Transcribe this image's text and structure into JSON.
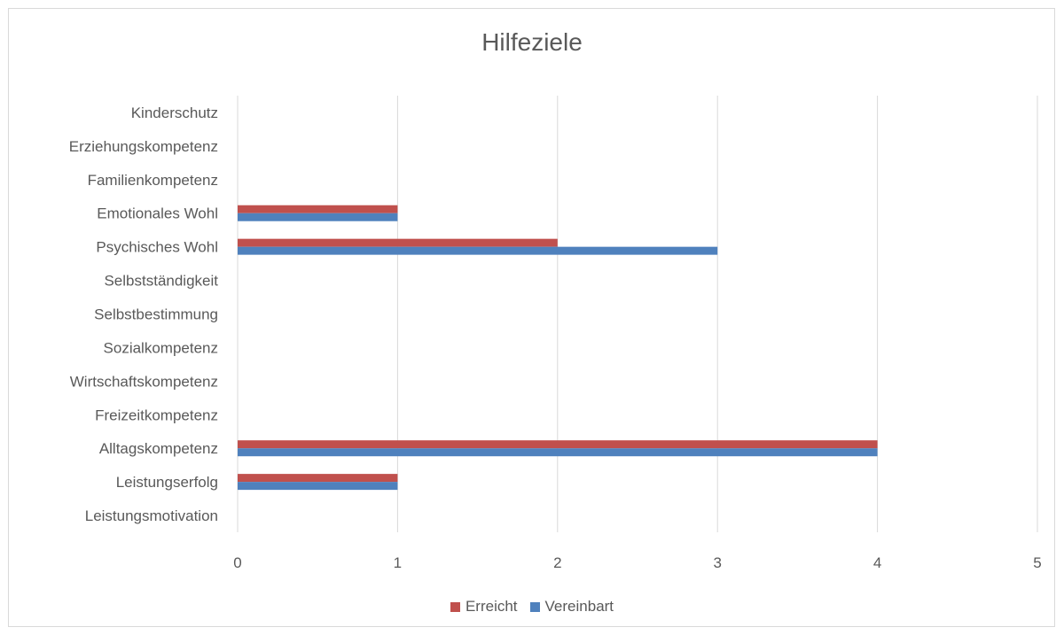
{
  "chart_data": {
    "type": "bar",
    "orientation": "horizontal",
    "title": "Hilfeziele",
    "categories": [
      "Kinderschutz",
      "Erziehungskompetenz",
      "Familienkompetenz",
      "Emotionales Wohl",
      "Psychisches Wohl",
      "Selbstständigkeit",
      "Selbstbestimmung",
      "Sozialkompetenz",
      "Wirtschaftskompetenz",
      "Freizeitkompetenz",
      "Alltagskompetenz",
      "Leistungserfolg",
      "Leistungsmotivation"
    ],
    "series": [
      {
        "name": "Erreicht",
        "color": "#c0504d",
        "values": [
          0,
          0,
          0,
          1,
          2,
          0,
          0,
          0,
          0,
          0,
          4,
          1,
          0
        ]
      },
      {
        "name": "Vereinbart",
        "color": "#4f81bd",
        "values": [
          0,
          0,
          0,
          1,
          3,
          0,
          0,
          0,
          0,
          0,
          4,
          1,
          0
        ]
      }
    ],
    "xlim": [
      0,
      5
    ],
    "xticks": [
      "0",
      "1",
      "2",
      "3",
      "4",
      "5"
    ],
    "grid": true,
    "legend_position": "bottom"
  }
}
